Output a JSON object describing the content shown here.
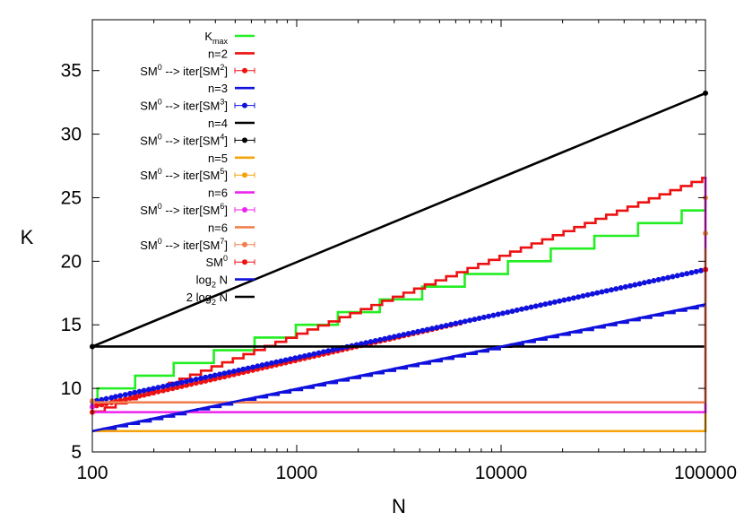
{
  "chart_data": {
    "type": "line",
    "xlabel": "N",
    "ylabel": "K",
    "xscale": "log",
    "xlim": [
      100,
      100000
    ],
    "ylim": [
      5,
      39
    ],
    "x_ticks": [
      100,
      1000,
      10000,
      100000
    ],
    "x_tick_labels": [
      "100",
      "1000",
      "10000",
      "100000"
    ],
    "y_ticks": [
      5,
      10,
      15,
      20,
      25,
      30,
      35
    ],
    "y_tick_labels": [
      "5",
      "10",
      "15",
      "20",
      "25",
      "30",
      "35"
    ],
    "grid": false,
    "legend_position": "top-left",
    "series": [
      {
        "name": "Kmax",
        "label_main": "K",
        "label_sub": "max",
        "kind": "step",
        "color": "#22ee22",
        "x": [
          100,
          106,
          162,
          250,
          393,
          622,
          990,
          1590,
          2550,
          4110,
          6640,
          10800,
          17500,
          28600,
          46800,
          76500,
          100000
        ],
        "y": [
          9,
          10,
          11,
          12,
          13,
          14,
          15,
          16,
          17,
          18,
          19,
          20,
          21,
          22,
          23,
          24,
          25
        ]
      },
      {
        "name": "n=2",
        "kind": "step",
        "color": "#ee1111",
        "x": [
          100,
          102,
          115,
          130,
          147,
          165,
          186,
          210,
          237,
          267,
          301,
          340,
          383,
          432,
          487,
          549,
          619,
          698,
          787,
          888,
          1001,
          1129,
          1273,
          1436,
          1619,
          1826,
          2059,
          2322,
          2619,
          2953,
          3330,
          3756,
          4235,
          4777,
          5387,
          6075,
          6851,
          7726,
          8713,
          9826,
          11081,
          12496,
          14093,
          15893,
          17923,
          20212,
          22794,
          25706,
          28989,
          32692,
          36868,
          41577,
          46888,
          52877,
          59631,
          67248,
          75838,
          85525,
          96450,
          100000
        ],
        "y": [
          8.13,
          8.18,
          8.5,
          8.82,
          9.15,
          9.47,
          9.79,
          10.11,
          10.44,
          10.76,
          11.08,
          11.4,
          11.73,
          12.05,
          12.37,
          12.69,
          13.02,
          13.34,
          13.66,
          13.98,
          14.31,
          14.63,
          14.95,
          15.27,
          15.6,
          15.92,
          16.24,
          16.56,
          16.89,
          17.21,
          17.53,
          17.85,
          18.18,
          18.5,
          18.82,
          19.14,
          19.47,
          19.79,
          20.11,
          20.43,
          20.76,
          21.08,
          21.4,
          21.72,
          22.05,
          22.37,
          22.69,
          23.01,
          23.34,
          23.66,
          23.98,
          24.3,
          24.63,
          24.95,
          25.27,
          25.59,
          25.92,
          26.24,
          26.56,
          26.64
        ]
      },
      {
        "name": "SM0 --> iter[SM2]",
        "label_main": "SM",
        "label_sup": "0",
        "label_mid": " --> iter[SM",
        "label_sup2": "2",
        "label_end": "]",
        "kind": "points",
        "color": "#ee1111",
        "x": [
          100,
          105,
          111,
          117,
          124,
          130,
          137,
          145,
          153,
          161,
          170,
          179,
          189,
          199,
          210,
          222,
          234,
          247,
          260,
          274,
          289,
          305,
          322,
          340,
          358,
          378,
          398,
          420,
          443,
          467,
          493,
          520,
          548,
          578,
          610,
          643,
          678,
          715,
          754,
          795,
          838,
          884,
          932,
          983,
          1037,
          1094,
          1153,
          1216,
          1283,
          1353,
          1427,
          1505,
          1587,
          1673,
          1765,
          1861,
          1963,
          2070,
          2183,
          2302,
          2428,
          2561,
          2700,
          2848,
          3003,
          3167,
          3340,
          3523,
          3715,
          3918,
          4132,
          4357,
          4595,
          4846,
          5111,
          5390,
          5684,
          5995,
          6322
        ],
        "y": [
          8.55,
          8.64,
          8.72,
          8.81,
          8.89,
          8.98,
          9.06,
          9.15,
          9.23,
          9.32,
          9.4,
          9.48,
          9.57,
          9.65,
          9.74,
          9.82,
          9.91,
          9.99,
          10.08,
          10.16,
          10.25,
          10.33,
          10.42,
          10.5,
          10.58,
          10.67,
          10.75,
          10.84,
          10.92,
          11.01,
          11.09,
          11.18,
          11.26,
          11.35,
          11.43,
          11.52,
          11.6,
          11.68,
          11.77,
          11.85,
          11.94,
          12.02,
          12.11,
          12.19,
          12.28,
          12.36,
          12.45,
          12.53,
          12.62,
          12.7,
          12.78,
          12.87,
          12.95,
          13.04,
          13.12,
          13.21,
          13.29,
          13.38,
          13.46,
          13.55,
          13.63,
          13.72,
          13.8,
          13.88,
          13.97,
          14.05,
          14.14,
          14.22,
          14.31,
          14.39,
          14.48,
          14.56,
          14.65,
          14.73,
          14.82,
          14.9,
          14.98,
          15.07,
          15.15
        ]
      },
      {
        "name": "n=3",
        "kind": "step",
        "color": "#1111dd",
        "x": [
          100,
          114,
          130,
          148,
          169,
          193,
          220,
          251,
          286,
          326,
          372,
          424,
          483,
          551,
          628,
          716,
          816,
          931,
          1061,
          1210,
          1379,
          1573,
          1793,
          2044,
          2331,
          2658,
          3030,
          3455,
          3939,
          4491,
          5120,
          5838,
          6656,
          7589,
          8652,
          9865,
          11248,
          12824,
          14621,
          16670,
          19006,
          21670,
          24707,
          28170,
          32118,
          36619,
          41751,
          47603,
          54274,
          61881,
          70553,
          80441,
          91714,
          100000
        ],
        "y": [
          6.64,
          6.83,
          7.02,
          7.21,
          7.4,
          7.59,
          7.78,
          7.97,
          8.16,
          8.35,
          8.54,
          8.73,
          8.92,
          9.11,
          9.3,
          9.49,
          9.68,
          9.87,
          10.05,
          10.24,
          10.43,
          10.62,
          10.81,
          11.0,
          11.19,
          11.38,
          11.57,
          11.76,
          11.95,
          12.14,
          12.33,
          12.52,
          12.71,
          12.9,
          13.08,
          13.27,
          13.46,
          13.65,
          13.84,
          14.03,
          14.22,
          14.41,
          14.6,
          14.79,
          14.98,
          15.17,
          15.36,
          15.55,
          15.74,
          15.93,
          16.11,
          16.3,
          16.49,
          16.61
        ]
      },
      {
        "name": "SM0 --> iter[SM3]",
        "label_main": "SM",
        "label_sup": "0",
        "label_mid": " --> iter[SM",
        "label_sup2": "3",
        "label_end": "]",
        "kind": "points",
        "color": "#1111dd",
        "x": [
          100,
          105,
          111,
          117,
          124,
          130,
          137,
          145,
          153,
          161,
          170,
          179,
          189,
          199,
          210,
          222,
          234,
          247,
          260,
          274,
          289,
          305,
          322,
          340,
          358,
          378,
          398,
          420,
          443,
          467,
          493,
          520,
          548,
          578,
          610,
          643,
          678,
          715,
          754,
          795,
          838,
          884,
          932,
          983,
          1037,
          1094,
          1153,
          1216,
          1283,
          1353,
          1427,
          1505,
          1587,
          1673,
          1765,
          1861,
          1963,
          2070,
          2183,
          2302,
          2428,
          2561,
          2700,
          2848,
          3003,
          3167,
          3340,
          3523,
          3715,
          3918,
          4132,
          4357,
          4595,
          4846,
          5111,
          5390,
          5684,
          5995,
          6322,
          6667,
          7031,
          7415,
          7820,
          8246,
          8697,
          9171,
          9672,
          10200,
          10757,
          11344,
          11963,
          12616,
          13304,
          14031,
          14797,
          15604,
          16456,
          17354,
          18302,
          19301,
          20354,
          21465,
          22637,
          23873,
          25176,
          26550,
          28000,
          29528,
          31140,
          32840,
          34632,
          36523,
          38516,
          40619,
          42836,
          45174,
          47640,
          50241,
          52983,
          55876,
          58926,
          62142,
          65535,
          69112,
          72885,
          76863,
          81059,
          85484,
          90150,
          95071,
          100000
        ],
        "y": [
          8.95,
          9.03,
          9.11,
          9.19,
          9.27,
          9.35,
          9.43,
          9.51,
          9.59,
          9.67,
          9.75,
          9.83,
          9.91,
          9.99,
          10.07,
          10.15,
          10.23,
          10.31,
          10.39,
          10.47,
          10.55,
          10.63,
          10.71,
          10.79,
          10.87,
          10.95,
          11.03,
          11.11,
          11.19,
          11.27,
          11.35,
          11.43,
          11.51,
          11.59,
          11.67,
          11.75,
          11.83,
          11.91,
          11.99,
          12.07,
          12.15,
          12.23,
          12.31,
          12.39,
          12.47,
          12.55,
          12.63,
          12.71,
          12.79,
          12.87,
          12.95,
          13.03,
          13.11,
          13.19,
          13.27,
          13.35,
          13.43,
          13.51,
          13.59,
          13.67,
          13.75,
          13.83,
          13.91,
          13.99,
          14.07,
          14.15,
          14.23,
          14.31,
          14.39,
          14.47,
          14.55,
          14.63,
          14.71,
          14.79,
          14.87,
          14.95,
          15.03,
          15.11,
          15.19,
          15.27,
          15.35,
          15.43,
          15.51,
          15.59,
          15.67,
          15.75,
          15.83,
          15.91,
          15.99,
          16.07,
          16.15,
          16.23,
          16.31,
          16.39,
          16.47,
          16.55,
          16.63,
          16.71,
          16.79,
          16.87,
          16.95,
          17.03,
          17.11,
          17.19,
          17.27,
          17.35,
          17.43,
          17.51,
          17.59,
          17.67,
          17.75,
          17.83,
          17.91,
          17.99,
          18.07,
          18.15,
          18.23,
          18.31,
          18.39,
          18.47,
          18.55,
          18.63,
          18.71,
          18.79,
          18.87,
          18.95,
          19.03,
          19.11,
          19.19,
          19.27,
          19.35
        ]
      },
      {
        "name": "n=4",
        "kind": "step",
        "color": "#000000",
        "x": [
          100,
          13000,
          100000
        ],
        "y": [
          13.29,
          13.29,
          13.29
        ]
      },
      {
        "name": "SM0 --> iter[SM4]",
        "label_main": "SM",
        "label_sup": "0",
        "label_mid": " --> iter[SM",
        "label_sup2": "4",
        "label_end": "]",
        "kind": "points",
        "color": "#000000",
        "x": [
          100,
          100000
        ],
        "y": [
          13.29,
          33.22
        ]
      },
      {
        "name": "n=5",
        "kind": "step",
        "color": "#f5a30c",
        "x": [
          100,
          100000
        ],
        "y": [
          6.64,
          16.61
        ]
      },
      {
        "name": "SM0 --> iter[SM5]",
        "label_main": "SM",
        "label_sup": "0",
        "label_mid": " --> iter[SM",
        "label_sup2": "5",
        "label_end": "]",
        "kind": "points",
        "color": "#f5a30c",
        "x": [
          100,
          100000
        ],
        "y": [
          9,
          25
        ]
      },
      {
        "name": "n=6",
        "kind": "step",
        "color": "#ee22ee",
        "x": [
          100,
          100000
        ],
        "y": [
          8.13,
          26.64
        ]
      },
      {
        "name": "SM0 --> iter[SM6]",
        "label_main": "SM",
        "label_sup": "0",
        "label_mid": " --> iter[SM",
        "label_sup2": "6",
        "label_end": "]",
        "kind": "points",
        "color": "#ee22ee",
        "x": [
          100,
          100000
        ],
        "y": [
          8.55,
          19.35
        ]
      },
      {
        "name": "n=6",
        "kind": "step",
        "color": "#f08050",
        "x": [
          100,
          100000
        ],
        "y": [
          8.9,
          21
        ]
      },
      {
        "name": "SM0 --> iter[SM7]",
        "label_main": "SM",
        "label_sup": "0",
        "label_mid": " --> iter[SM",
        "label_sup2": "7",
        "label_end": "]",
        "kind": "points",
        "color": "#f08050",
        "x": [
          100,
          100000
        ],
        "y": [
          9,
          22.2
        ]
      },
      {
        "name": "SM0",
        "label_main": "SM",
        "label_sup": "0",
        "kind": "points",
        "color": "#ee1111",
        "x": [
          100,
          100000
        ],
        "y": [
          8.13,
          19.35
        ]
      },
      {
        "name": "log2 N",
        "label_main": "log",
        "label_sub": "2",
        "label_end": " N",
        "kind": "line",
        "color": "#1111dd",
        "x": [
          100,
          100000
        ],
        "y": [
          6.64,
          16.61
        ]
      },
      {
        "name": "2 log2 N",
        "label_main": "2 log",
        "label_sub": "2",
        "label_end": " N",
        "kind": "line",
        "color": "#000000",
        "x": [
          100,
          100000
        ],
        "y": [
          13.29,
          33.22
        ]
      }
    ]
  }
}
